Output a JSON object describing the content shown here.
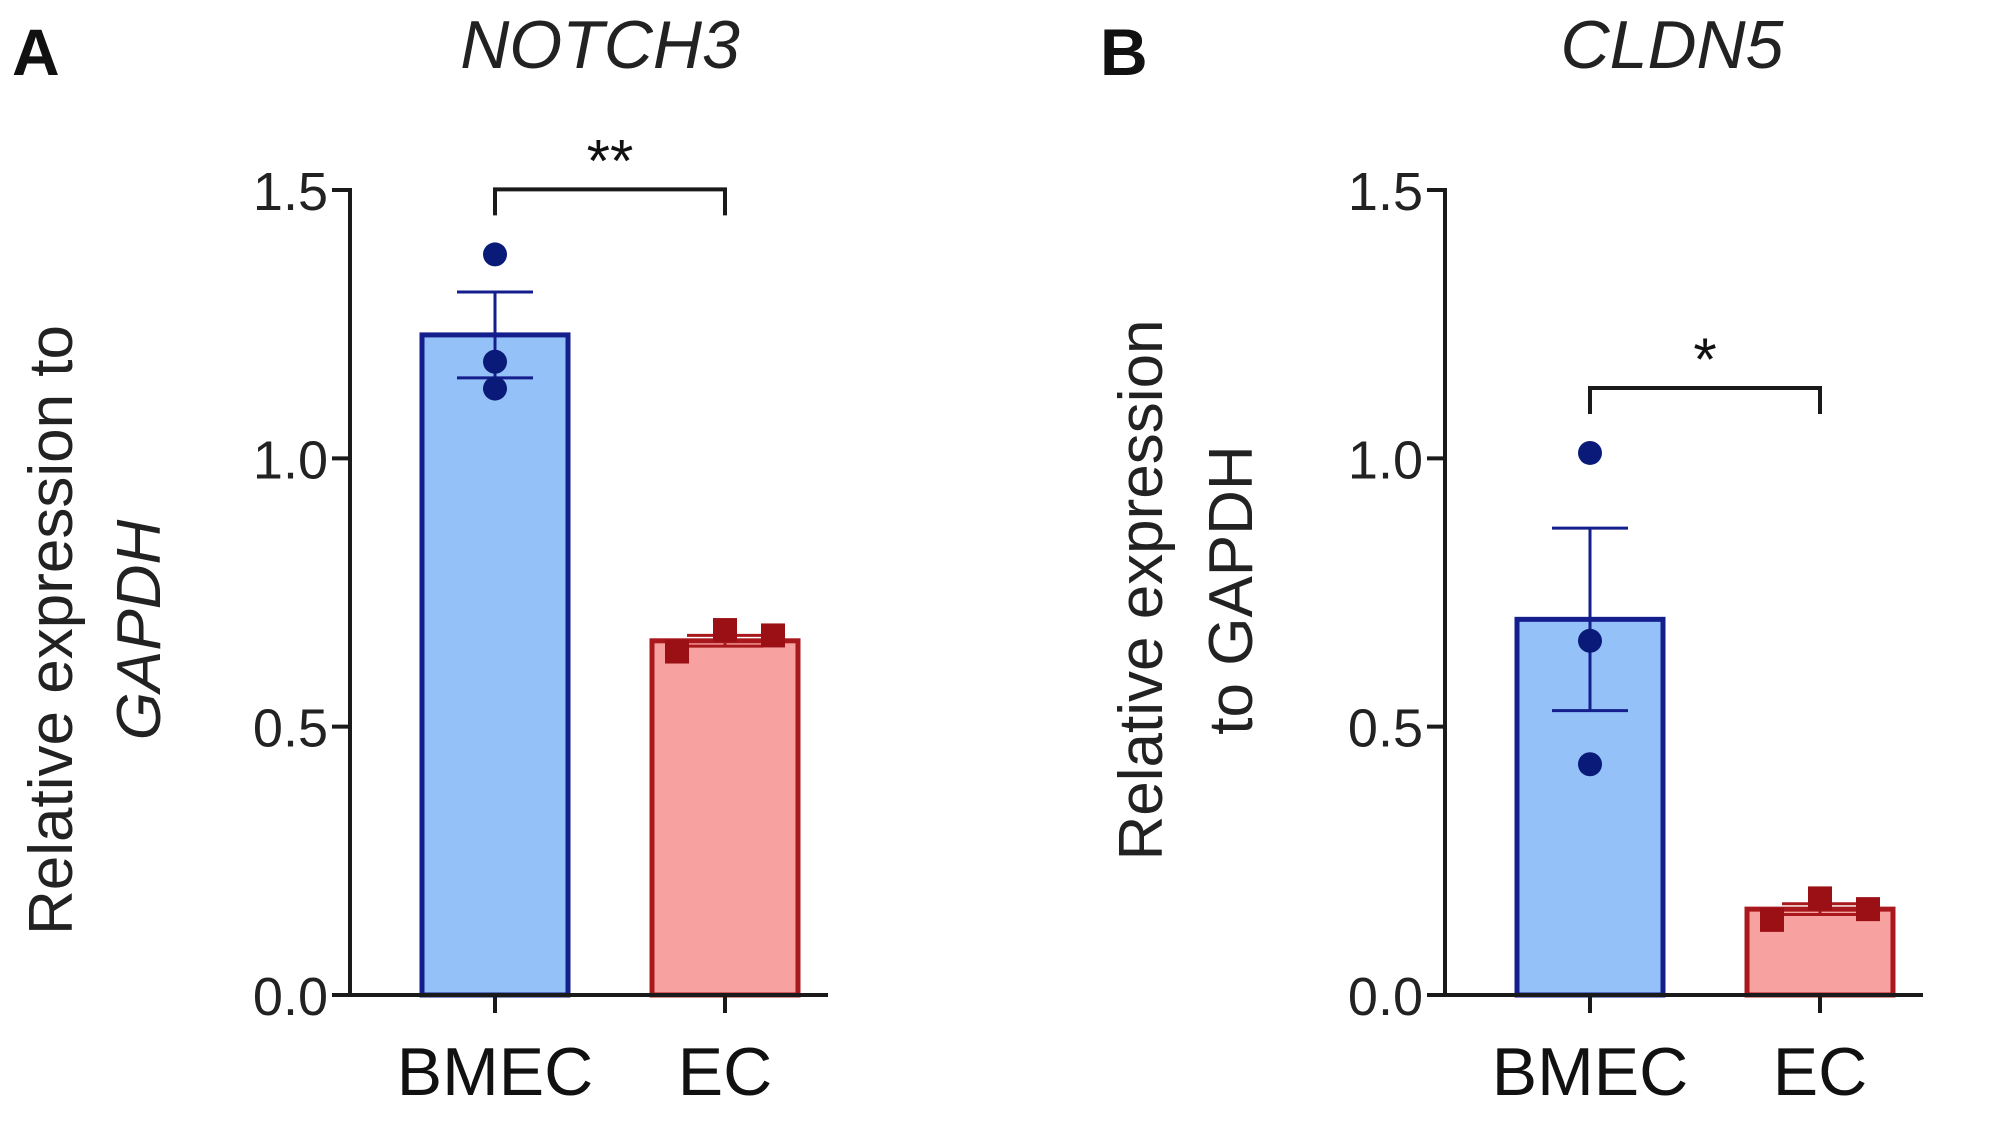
{
  "chart_data": [
    {
      "panel": "A",
      "type": "bar",
      "title": "NOTCH3",
      "ylabel_line1": "Relative expression to",
      "ylabel_line2": "GAPDH",
      "categories": [
        "BMEC",
        "EC"
      ],
      "values": [
        1.23,
        0.66
      ],
      "sem": [
        0.08,
        0.01
      ],
      "points": [
        [
          1.38,
          1.18,
          1.13
        ],
        [
          0.64,
          0.68,
          0.67
        ]
      ],
      "ylim": [
        0,
        1.5
      ],
      "yticks": [
        0,
        0.5,
        1.0,
        1.5
      ],
      "ytick_labels": [
        "0.0",
        "0.5",
        "1.0",
        "1.5"
      ],
      "significance": "**"
    },
    {
      "panel": "B",
      "type": "bar",
      "title": "CLDN5",
      "ylabel_line1": "Relative expression",
      "ylabel_line2": "to GAPDH",
      "categories": [
        "BMEC",
        "EC"
      ],
      "values": [
        0.7,
        0.16
      ],
      "sem": [
        0.17,
        0.01
      ],
      "points": [
        [
          1.01,
          0.66,
          0.43
        ],
        [
          0.14,
          0.18,
          0.16
        ]
      ],
      "ylim": [
        0,
        1.5
      ],
      "yticks": [
        0,
        0.5,
        1.0,
        1.5
      ],
      "ytick_labels": [
        "0.0",
        "0.5",
        "1.0",
        "1.5"
      ],
      "significance": "*"
    }
  ],
  "colors": {
    "bmec_fill": "#94c1f7",
    "bmec_edge": "#141e8c",
    "bmec_point": "#0a1a78",
    "ec_fill": "#f7a1a1",
    "ec_edge": "#a8181c",
    "ec_point": "#9a1014",
    "axis": "#1a1a1a"
  }
}
